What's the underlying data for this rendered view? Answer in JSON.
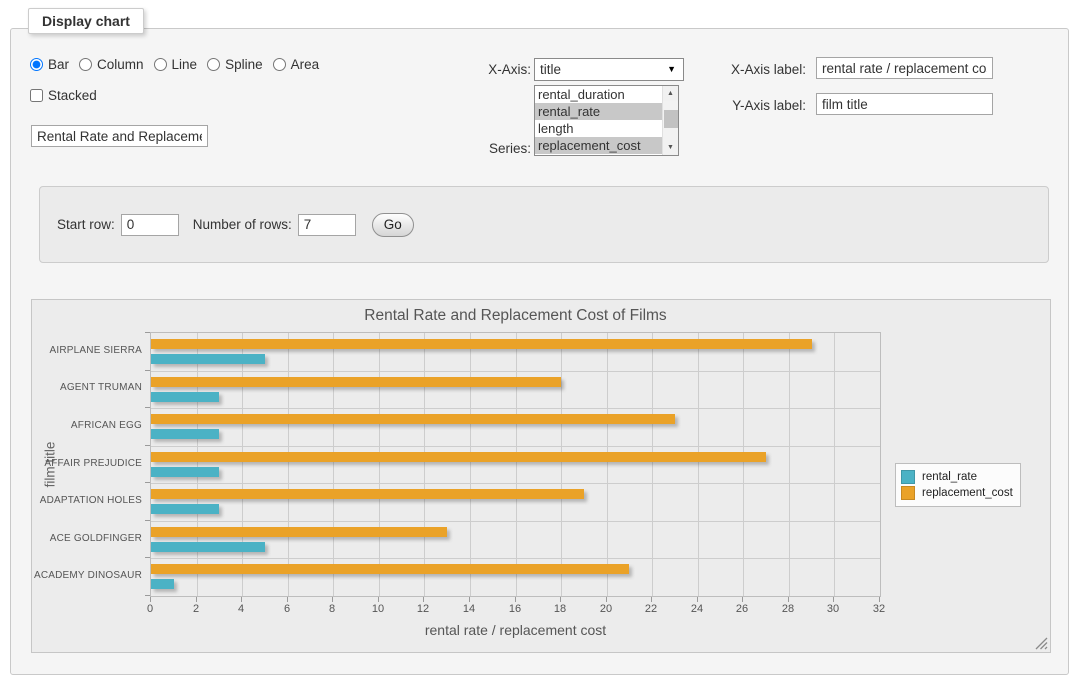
{
  "window": {
    "legend": "Display chart"
  },
  "controls": {
    "chart_types": [
      {
        "label": "Bar",
        "selected": true
      },
      {
        "label": "Column",
        "selected": false
      },
      {
        "label": "Line",
        "selected": false
      },
      {
        "label": "Spline",
        "selected": false
      },
      {
        "label": "Area",
        "selected": false
      }
    ],
    "stacked": {
      "label": "Stacked",
      "checked": false
    },
    "title_input": {
      "value": "Rental Rate and Replacement Cost of Films"
    },
    "x_axis": {
      "label": "X-Axis:",
      "value": "title"
    },
    "series": {
      "label": "Series:",
      "options": [
        {
          "label": "rental_duration",
          "selected": false
        },
        {
          "label": "rental_rate",
          "selected": true
        },
        {
          "label": "length",
          "selected": false
        },
        {
          "label": "replacement_cost",
          "selected": true
        }
      ]
    },
    "x_axis_label": {
      "label": "X-Axis label:",
      "value": "rental rate / replacement cost"
    },
    "y_axis_label": {
      "label": "Y-Axis label:",
      "value": "film title"
    }
  },
  "row_controls": {
    "start_row": {
      "label": "Start row:",
      "value": "0"
    },
    "number_of_rows": {
      "label": "Number of rows:",
      "value": "7"
    },
    "go_button": "Go"
  },
  "chart_data": {
    "type": "bar",
    "orientation": "horizontal",
    "title": "Rental Rate and Replacement Cost of Films",
    "categories": [
      "AIRPLANE SIERRA",
      "AGENT TRUMAN",
      "AFRICAN EGG",
      "AFFAIR PREJUDICE",
      "ADAPTATION HOLES",
      "ACE GOLDFINGER",
      "ACADEMY DINOSAUR"
    ],
    "series": [
      {
        "name": "rental_rate",
        "color": "#4bb2c5",
        "values": [
          5,
          3,
          3,
          3,
          3,
          5,
          1
        ]
      },
      {
        "name": "replacement_cost",
        "color": "#EAA228",
        "values": [
          29,
          18,
          23,
          27,
          19,
          13,
          21
        ]
      }
    ],
    "xlabel": "rental rate / replacement cost",
    "ylabel": "film title",
    "xlim": [
      0,
      32
    ],
    "xticks": [
      0,
      2,
      4,
      6,
      8,
      10,
      12,
      14,
      16,
      18,
      20,
      22,
      24,
      26,
      28,
      30,
      32
    ],
    "grid": true,
    "legend_position": "right"
  }
}
